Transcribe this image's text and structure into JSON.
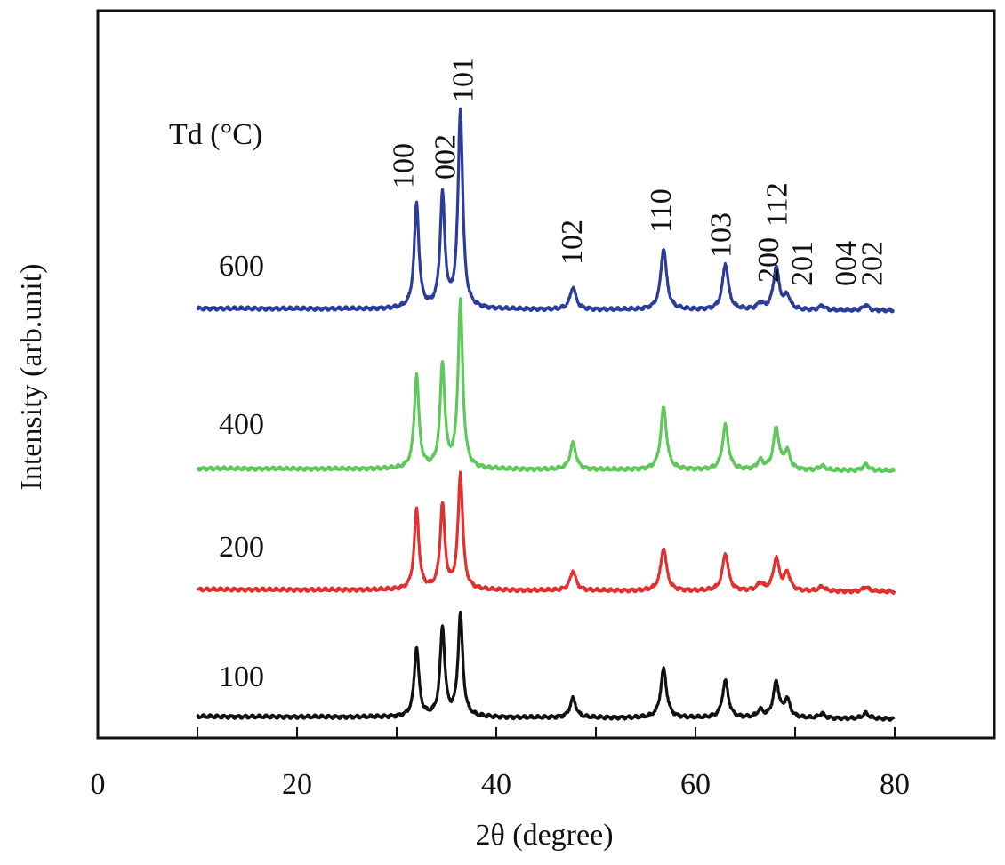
{
  "chart_data": {
    "type": "line",
    "title": "",
    "xlabel": "2θ (degree)",
    "ylabel": "Intensity (arb.unit)",
    "xlim": [
      0,
      90
    ],
    "x_ticks": [
      0,
      20,
      40,
      60,
      80
    ],
    "x_tick_labels": [
      "0",
      "20",
      "40",
      "60",
      "80"
    ],
    "y_axis_ticks_labeled": false,
    "grid": false,
    "legend": "none",
    "legend_title": "Td (°C)",
    "series": [
      {
        "name": "600",
        "color": "#2b3c9a",
        "peak_2theta": [
          32.0,
          34.6,
          36.4,
          47.7,
          56.8,
          63.0,
          66.5,
          68.1,
          69.2,
          72.7,
          77.1
        ],
        "peak_intensity": [
          118,
          127,
          223,
          25,
          69,
          52,
          7,
          48,
          15,
          5,
          6
        ]
      },
      {
        "name": "400",
        "color": "#5ec95a",
        "peak_2theta": [
          32.0,
          34.6,
          36.4,
          47.7,
          56.8,
          63.0,
          66.5,
          68.1,
          69.2,
          72.7,
          77.1
        ],
        "peak_intensity": [
          105,
          117,
          187,
          30,
          70,
          50,
          10,
          46,
          20,
          5,
          7
        ]
      },
      {
        "name": "200",
        "color": "#e03030",
        "peak_2theta": [
          32.0,
          34.6,
          36.4,
          47.7,
          56.8,
          63.0,
          66.5,
          68.1,
          69.2,
          72.7,
          77.1
        ],
        "peak_intensity": [
          90,
          95,
          130,
          22,
          48,
          42,
          8,
          36,
          20,
          5,
          5
        ]
      },
      {
        "name": "100",
        "color": "#111111",
        "peak_2theta": [
          32.0,
          34.6,
          36.4,
          47.7,
          56.8,
          63.0,
          66.5,
          68.1,
          69.2,
          72.7,
          77.1
        ],
        "peak_intensity": [
          78,
          100,
          115,
          22,
          55,
          42,
          8,
          40,
          20,
          5,
          6
        ]
      }
    ],
    "peak_annotations": [
      {
        "label": "100",
        "x": 32.0
      },
      {
        "label": "002",
        "x": 34.6
      },
      {
        "label": "101",
        "x": 36.4
      },
      {
        "label": "102",
        "x": 47.7
      },
      {
        "label": "110",
        "x": 56.8
      },
      {
        "label": "103",
        "x": 63.0
      },
      {
        "label": "200",
        "x": 66.5
      },
      {
        "label": "112",
        "x": 68.1
      },
      {
        "label": "201",
        "x": 69.2
      },
      {
        "label": "004",
        "x": 72.7
      },
      {
        "label": "202",
        "x": 77.1
      }
    ]
  }
}
